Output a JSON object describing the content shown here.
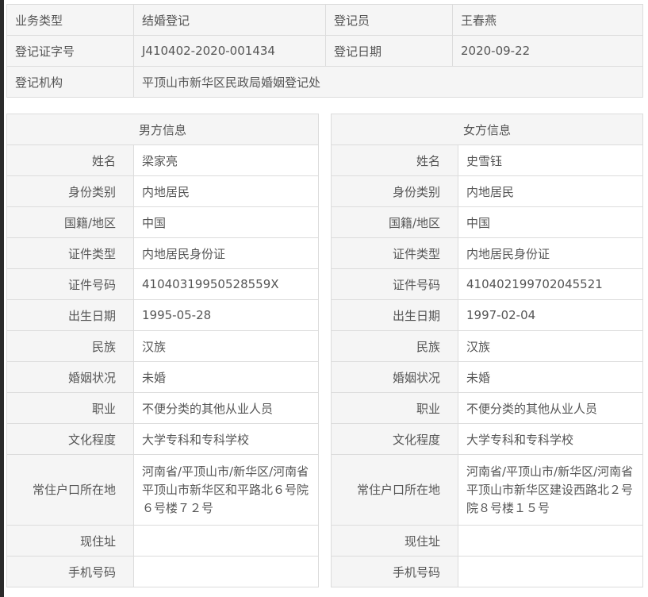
{
  "summary": {
    "business_type_label": "业务类型",
    "business_type": "结婚登记",
    "registrar_label": "登记员",
    "registrar": "王春燕",
    "cert_no_label": "登记证字号",
    "cert_no": "J410402-2020-001434",
    "date_label": "登记日期",
    "date": "2020-09-22",
    "office_label": "登记机构",
    "office": "平顶山市新华区民政局婚姻登记处"
  },
  "labels": [
    "姓名",
    "身份类别",
    "国籍/地区",
    "证件类型",
    "证件号码",
    "出生日期",
    "民族",
    "婚姻状况",
    "职业",
    "文化程度",
    "常住户口所在地",
    "现住址",
    "手机号码"
  ],
  "male": {
    "title": "男方信息",
    "values": [
      "梁家亮",
      "内地居民",
      "中国",
      "内地居民身份证",
      "41040319950528559X",
      "1995-05-28",
      "汉族",
      "未婚",
      "不便分类的其他从业人员",
      "大学专科和专科学校",
      "河南省/平顶山市/新华区/河南省平顶山市新华区和平路北６号院６号楼７２号",
      "",
      ""
    ]
  },
  "female": {
    "title": "女方信息",
    "values": [
      "史雪钰",
      "内地居民",
      "中国",
      "内地居民身份证",
      "410402199702045521",
      "1997-02-04",
      "汉族",
      "未婚",
      "不便分类的其他从业人员",
      "大学专科和专科学校",
      "河南省/平顶山市/新华区/河南省平顶山市新华区建设西路北２号院８号楼１５号",
      "",
      ""
    ]
  }
}
